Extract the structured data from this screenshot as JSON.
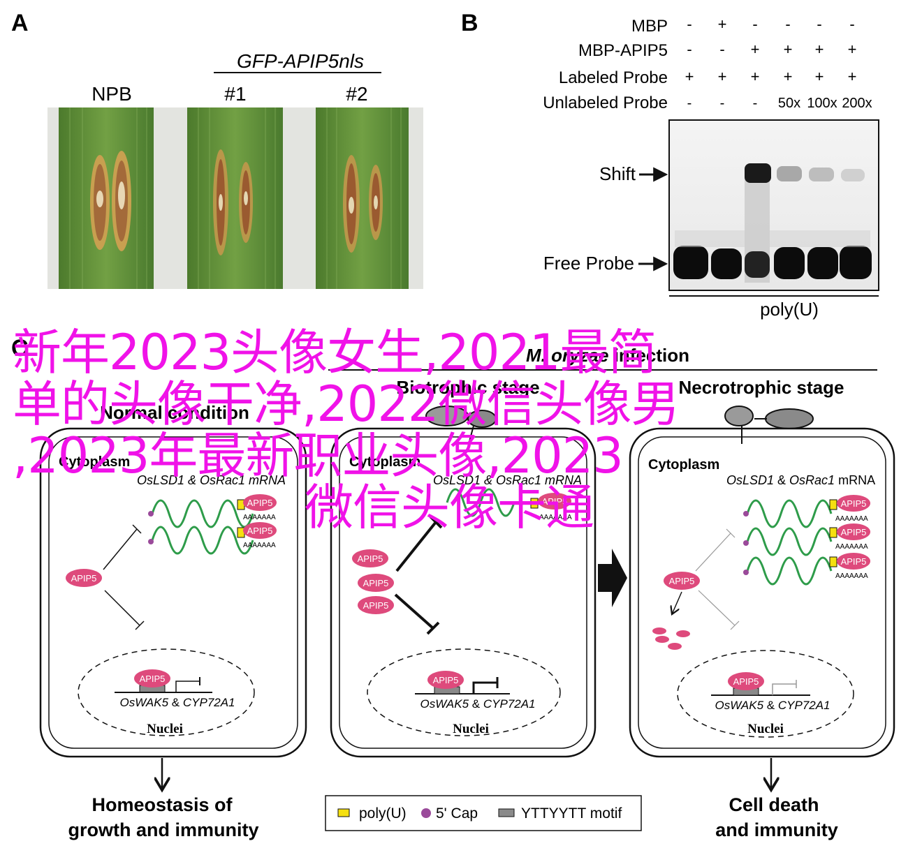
{
  "panels": {
    "a": {
      "letter": "A",
      "group_label": "GFP-APIP5nls",
      "lanes": [
        "NPB",
        "#1",
        "#2"
      ]
    },
    "b": {
      "letter": "B",
      "rows": [
        {
          "label": "MBP",
          "values": [
            "-",
            "+",
            "-",
            "-",
            "-",
            "-"
          ]
        },
        {
          "label": "MBP-APIP5",
          "values": [
            "-",
            "-",
            "+",
            "+",
            "+",
            "+"
          ]
        },
        {
          "label": "Labeled Probe",
          "values": [
            "+",
            "+",
            "+",
            "+",
            "+",
            "+"
          ]
        },
        {
          "label": "Unlabeled Probe",
          "values": [
            "-",
            "-",
            "-",
            "50x",
            "100x",
            "200x"
          ]
        }
      ],
      "shift_label": "Shift",
      "free_probe_label": "Free Probe",
      "probe_name": "poly(U)"
    },
    "c": {
      "letter": "C",
      "infection_label": "M. oryzae infection",
      "stage_left": "Biotrophic stage",
      "stage_right": "Necrotrophic stage",
      "normal_condition": "Normal condition",
      "cytoplasm": "Cytoplasm",
      "mrna_left": "OsLSD1 & OsRac1 mRNA",
      "mrna_mid": "OsLSD1 & OsRac1 mRNA",
      "mrna_right_a": "OsLSD1",
      "mrna_right_b": " & ",
      "mrna_right_c": "OsRac1",
      "mrna_right_d": " mRNA",
      "protein": "APIP5",
      "polya": "AAAAAAA",
      "genes_a": "OsWAK5",
      "genes_b": " & ",
      "genes_c": "CYP72A1",
      "nuclei": "Nuclei",
      "outcome_left_1": "Homeostasis of",
      "outcome_left_2": "growth and immunity",
      "outcome_right_1": "Cell death",
      "outcome_right_2": "and immunity",
      "legend": [
        "poly(U)",
        "5' Cap",
        "YTTYYTT motif"
      ]
    }
  },
  "overlay_text": [
    "新年2023头像女生,2021最简",
    "单的头像干净,2022微信头像男",
    ",2023年最新职业头像,2023",
    "微信头像卡通"
  ],
  "colors": {
    "overlay": "#f012e8",
    "leaf": "#5e8c3a",
    "protein": "#de4a7c",
    "mrna": "#2e9c4a",
    "polyu": "#f5e010",
    "cap": "#9a4a9a"
  }
}
